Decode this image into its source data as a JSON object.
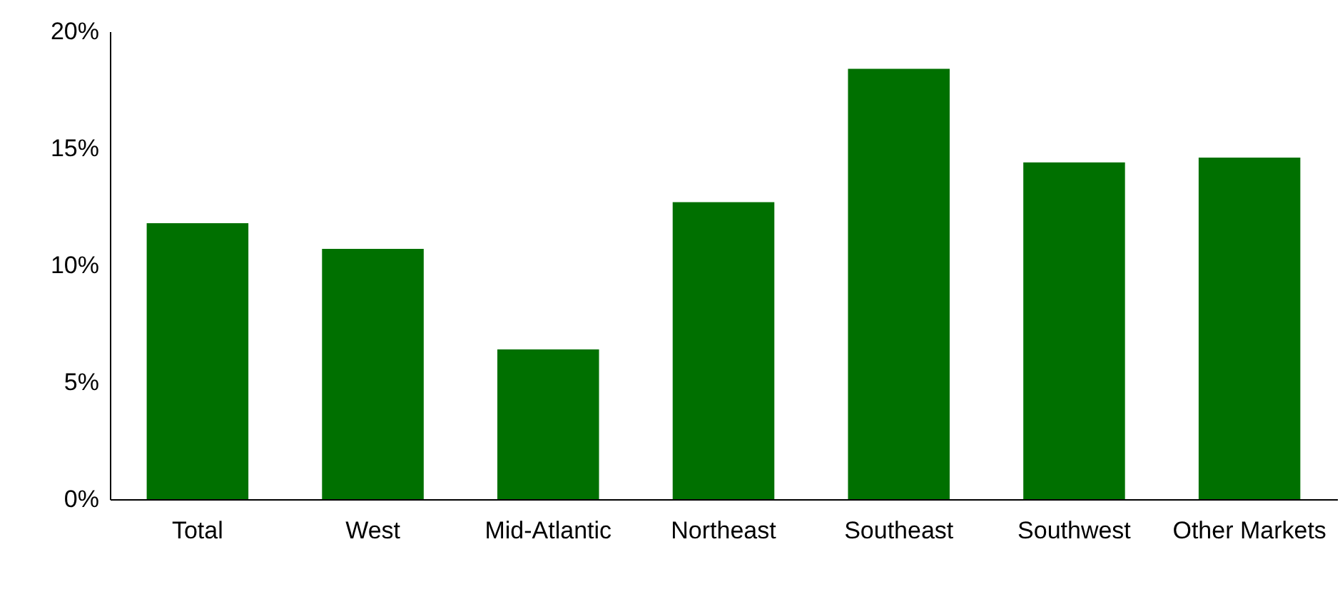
{
  "chart_data": {
    "type": "bar",
    "categories": [
      "Total",
      "West",
      "Mid-Atlantic",
      "Northeast",
      "Southeast",
      "Southwest",
      "Other Markets"
    ],
    "values": [
      11.8,
      10.7,
      6.4,
      12.7,
      18.4,
      14.4,
      14.6
    ],
    "color": "#007000",
    "ylim": [
      0,
      20
    ],
    "yticks": [
      {
        "value": 0,
        "label": "0%"
      },
      {
        "value": 5,
        "label": "5%"
      },
      {
        "value": 10,
        "label": "10%"
      },
      {
        "value": 15,
        "label": "15%"
      },
      {
        "value": 20,
        "label": "20%"
      }
    ],
    "grid": false
  }
}
